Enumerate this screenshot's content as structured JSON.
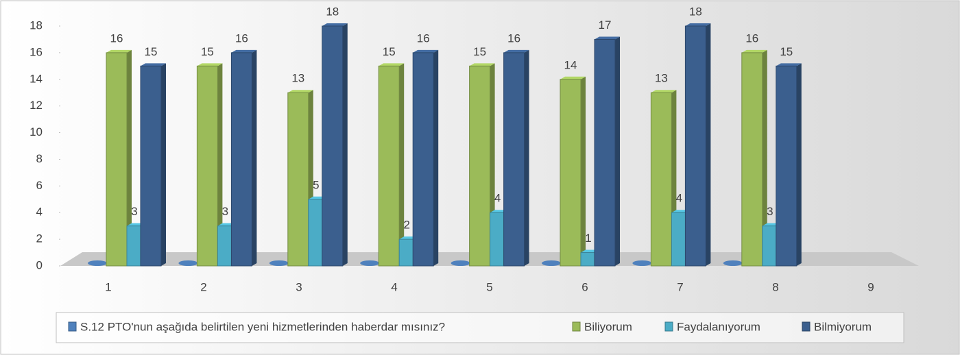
{
  "chart_data": {
    "type": "bar3d",
    "categories": [
      "1",
      "2",
      "3",
      "4",
      "5",
      "6",
      "7",
      "8",
      "9"
    ],
    "series": [
      {
        "name": "S.12 PTO'nun  aşağıda belirtilen yeni hizmetlerinden haberdar mısınız?",
        "color": "#4f81bd",
        "values": [
          0,
          0,
          0,
          0,
          0,
          0,
          0,
          0,
          null
        ]
      },
      {
        "name": "Biliyorum",
        "color": "#9bbb59",
        "values": [
          16,
          15,
          13,
          15,
          15,
          14,
          13,
          16,
          null
        ]
      },
      {
        "name": "Faydalanıyorum",
        "color": "#4bacc6",
        "values": [
          3,
          3,
          5,
          2,
          4,
          1,
          4,
          3,
          null
        ]
      },
      {
        "name": "Bilmiyorum",
        "color": "#3b5f8e",
        "values": [
          15,
          16,
          18,
          16,
          16,
          17,
          18,
          15,
          null
        ]
      }
    ],
    "ylim": [
      0,
      18
    ],
    "yticks": [
      0,
      2,
      4,
      6,
      8,
      10,
      12,
      14,
      16,
      18
    ],
    "legend": "bottom"
  }
}
